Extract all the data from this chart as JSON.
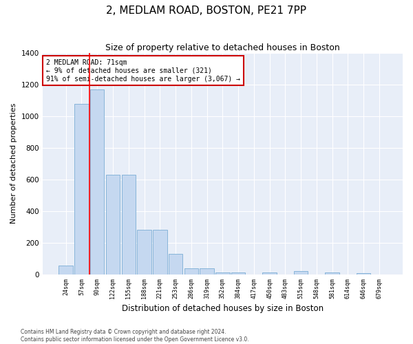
{
  "title1": "2, MEDLAM ROAD, BOSTON, PE21 7PP",
  "title2": "Size of property relative to detached houses in Boston",
  "xlabel": "Distribution of detached houses by size in Boston",
  "ylabel": "Number of detached properties",
  "bin_labels": [
    "24sqm",
    "57sqm",
    "90sqm",
    "122sqm",
    "155sqm",
    "188sqm",
    "221sqm",
    "253sqm",
    "286sqm",
    "319sqm",
    "352sqm",
    "384sqm",
    "417sqm",
    "450sqm",
    "483sqm",
    "515sqm",
    "548sqm",
    "581sqm",
    "614sqm",
    "646sqm",
    "679sqm"
  ],
  "bar_heights": [
    55,
    1075,
    1170,
    630,
    630,
    280,
    280,
    130,
    38,
    38,
    14,
    14,
    0,
    14,
    0,
    20,
    0,
    14,
    0,
    7,
    0
  ],
  "bar_color": "#c5d8f0",
  "bar_edgecolor": "#7aadd4",
  "background_color": "#e8eef8",
  "grid_color": "#ffffff",
  "annotation_text": "2 MEDLAM ROAD: 71sqm\n← 9% of detached houses are smaller (321)\n91% of semi-detached houses are larger (3,067) →",
  "annotation_box_color": "#ffffff",
  "annotation_box_edgecolor": "#cc0000",
  "red_line_x": 1.5,
  "ylim": [
    0,
    1400
  ],
  "yticks": [
    0,
    200,
    400,
    600,
    800,
    1000,
    1200,
    1400
  ],
  "footnote": "Contains HM Land Registry data © Crown copyright and database right 2024.\nContains public sector information licensed under the Open Government Licence v3.0.",
  "fig_width": 6.0,
  "fig_height": 5.0,
  "fig_bg": "#ffffff",
  "title1_fontsize": 11,
  "title2_fontsize": 9
}
